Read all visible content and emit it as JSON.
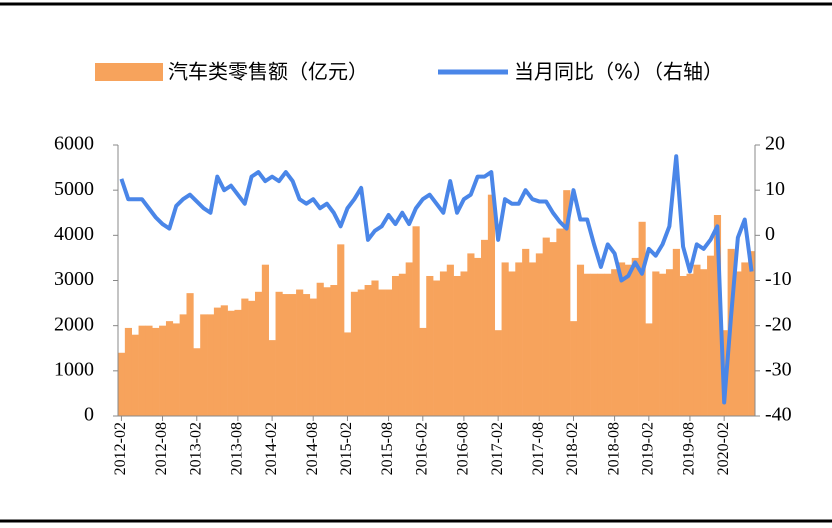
{
  "chart_data": {
    "type": "bar-line",
    "categories": [
      "2012-02",
      null,
      null,
      null,
      null,
      null,
      "2012-08",
      null,
      null,
      null,
      null,
      "2013-02",
      null,
      null,
      null,
      null,
      null,
      "2013-08",
      null,
      null,
      null,
      null,
      "2014-02",
      null,
      null,
      null,
      null,
      null,
      "2014-08",
      null,
      null,
      null,
      null,
      "2015-02",
      null,
      null,
      null,
      null,
      null,
      "2015-08",
      null,
      null,
      null,
      null,
      "2016-02",
      null,
      null,
      null,
      null,
      null,
      "2016-08",
      null,
      null,
      null,
      null,
      "2017-02",
      null,
      null,
      null,
      null,
      null,
      "2017-08",
      null,
      null,
      null,
      null,
      "2018-02",
      null,
      null,
      null,
      null,
      null,
      "2018-08",
      null,
      null,
      null,
      null,
      "2019-02",
      null,
      null,
      null,
      null,
      null,
      "2019-08",
      null,
      null,
      null,
      null,
      "2020-02",
      null,
      null,
      null,
      null
    ],
    "series": [
      {
        "name": "汽车类零售额（亿元）",
        "type": "bar",
        "color": "#f7a35c",
        "values": [
          1400,
          1950,
          1800,
          2000,
          2000,
          1950,
          2000,
          2100,
          2050,
          2250,
          2720,
          1500,
          2250,
          2250,
          2400,
          2450,
          2330,
          2350,
          2600,
          2550,
          2750,
          3350,
          1680,
          2750,
          2700,
          2700,
          2800,
          2700,
          2600,
          2950,
          2850,
          2900,
          3800,
          1850,
          2750,
          2800,
          2900,
          3000,
          2800,
          2800,
          3100,
          3150,
          3400,
          4200,
          1950,
          3100,
          3000,
          3200,
          3350,
          3100,
          3200,
          3600,
          3500,
          3900,
          4900,
          1900,
          3400,
          3200,
          3400,
          3700,
          3400,
          3600,
          3950,
          3850,
          4150,
          5000,
          2100,
          3350,
          3150,
          3150,
          3150,
          3150,
          3250,
          3400,
          3350,
          3500,
          4300,
          2050,
          3200,
          3150,
          3250,
          3700,
          3100,
          3150,
          3350,
          3250,
          3550,
          4450,
          1900,
          3700,
          3200,
          3400,
          3650
        ]
      },
      {
        "name": "当月同比（%）（右轴）",
        "type": "line",
        "axis": "y2",
        "color": "#4a86e8",
        "values": [
          12.5,
          8,
          8,
          8,
          6,
          4,
          2.5,
          1.5,
          6.5,
          8,
          9,
          7.5,
          6,
          5,
          13,
          10,
          11,
          9,
          7,
          13,
          14,
          12,
          13,
          12,
          14,
          12,
          8,
          7,
          8,
          6,
          7,
          5,
          2,
          6,
          8,
          10.5,
          -1,
          1,
          2,
          4.5,
          2.5,
          5,
          2.5,
          6,
          8,
          9,
          7,
          5,
          12,
          5,
          8,
          9,
          13,
          13,
          14,
          -1,
          8,
          7,
          7,
          10,
          8,
          7.5,
          7.5,
          5,
          3,
          1.5,
          10,
          3.5,
          3.5,
          -2,
          -7,
          -2,
          -4,
          -10,
          -9,
          -6,
          -8.5,
          -3,
          -4.5,
          -2,
          2,
          17.5,
          -2.5,
          -8,
          -2,
          -3,
          -1,
          2,
          -37,
          -18,
          -0.5,
          3.5,
          -8
        ]
      }
    ],
    "ylim": [
      0,
      6000
    ],
    "yticks": [
      0,
      1000,
      2000,
      3000,
      4000,
      5000,
      6000
    ],
    "y2lim": [
      -40,
      20
    ],
    "y2ticks": [
      -40,
      -30,
      -20,
      -10,
      0,
      10,
      20
    ],
    "grid": false,
    "legend": "top"
  }
}
